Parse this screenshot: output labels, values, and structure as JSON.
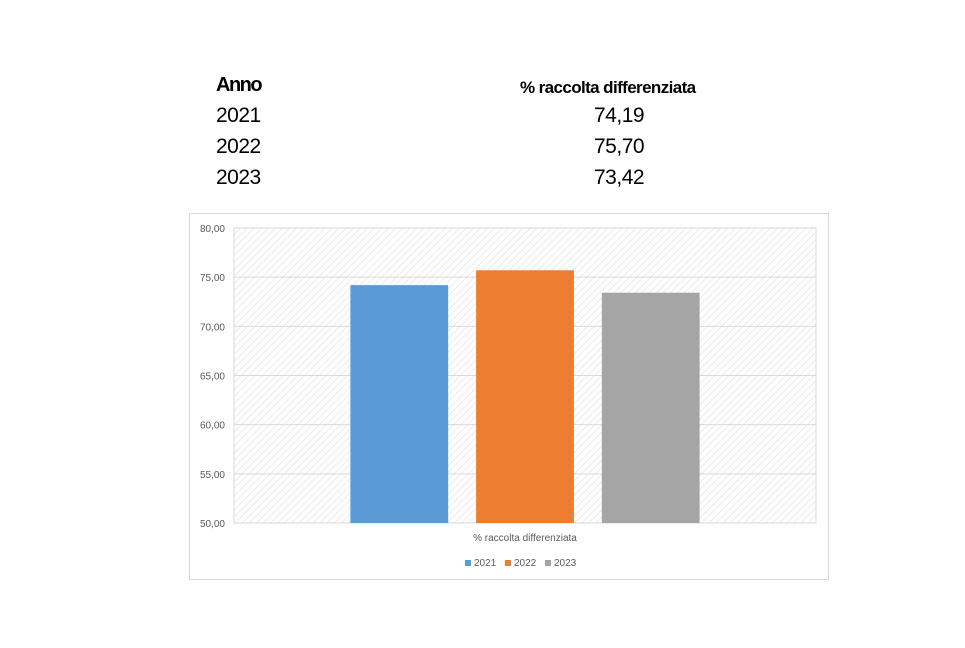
{
  "table": {
    "headers": [
      "Anno",
      "% raccolta differenziata"
    ],
    "rows": [
      {
        "year": "2021",
        "value": "74,19"
      },
      {
        "year": "2022",
        "value": "75,70"
      },
      {
        "year": "2023",
        "value": "73,42"
      }
    ]
  },
  "chart_data": {
    "type": "bar",
    "title": "",
    "categories": [
      "% raccolta differenziata"
    ],
    "series": [
      {
        "name": "2021",
        "values": [
          74.19
        ],
        "color": "#5b9bd5"
      },
      {
        "name": "2022",
        "values": [
          75.7
        ],
        "color": "#ed7d31"
      },
      {
        "name": "2023",
        "values": [
          73.42
        ],
        "color": "#a5a5a5"
      }
    ],
    "xlabel": "",
    "ylabel": "",
    "ylim": [
      50,
      80
    ],
    "yticks": [
      "50,00",
      "55,00",
      "60,00",
      "65,00",
      "70,00",
      "75,00",
      "80,00"
    ],
    "grid": true,
    "legend": "bottom"
  }
}
